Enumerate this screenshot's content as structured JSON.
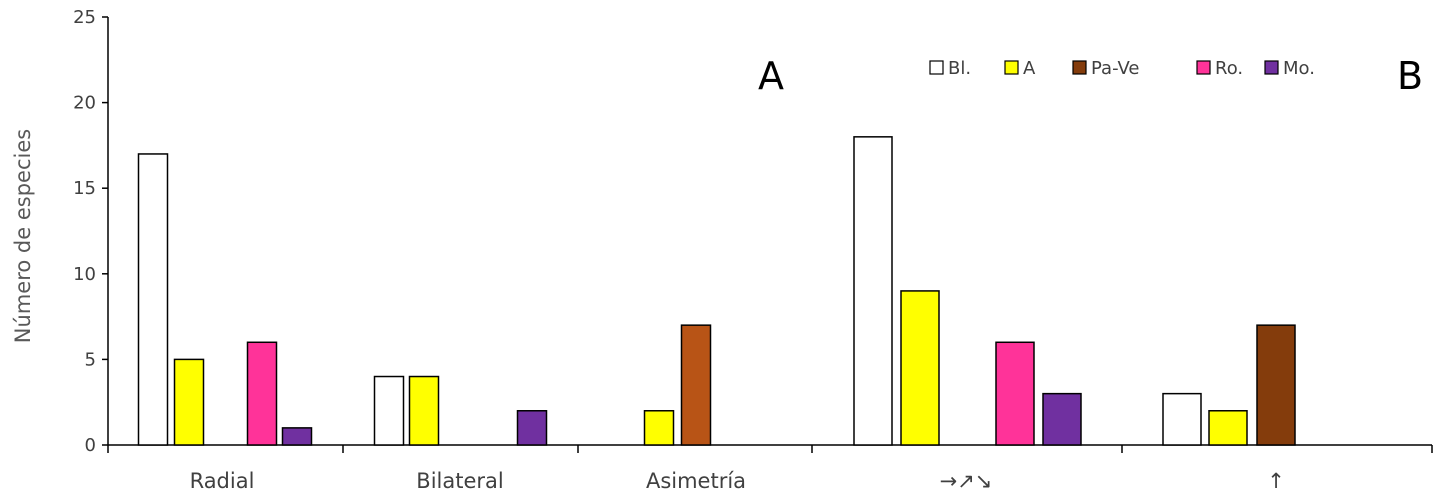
{
  "chart_data": {
    "type": "bar",
    "ylabel": "Número de especies",
    "ylim": [
      0,
      25
    ],
    "yticks": [
      0,
      5,
      10,
      15,
      20,
      25
    ],
    "grid": false,
    "legend_position": "top-right",
    "panels": [
      {
        "label": "A",
        "categories": [
          "Radial",
          "Bilateral",
          "Asimetría"
        ],
        "series": [
          {
            "name": "Bl.",
            "color": "#ffffff",
            "values": [
              17,
              4,
              0
            ]
          },
          {
            "name": "A",
            "color": "#ffff00",
            "values": [
              5,
              4,
              2
            ]
          },
          {
            "name": "Pa-Ve",
            "color": "#b85416",
            "values": [
              0,
              0,
              7
            ]
          },
          {
            "name": "Ro.",
            "color": "#ff3399",
            "values": [
              6,
              0,
              0
            ]
          },
          {
            "name": "Mo.",
            "color": "#7030a0",
            "values": [
              1,
              2,
              0
            ]
          }
        ]
      },
      {
        "label": "B",
        "categories": [
          "→↗↘",
          "↑"
        ],
        "series": [
          {
            "name": "Bl.",
            "color": "#ffffff",
            "values": [
              18,
              3
            ]
          },
          {
            "name": "A",
            "color": "#ffff00",
            "values": [
              9,
              2
            ]
          },
          {
            "name": "Pa-Ve",
            "color": "#843c0c",
            "values": [
              0,
              7
            ]
          },
          {
            "name": "Ro.",
            "color": "#ff3399",
            "values": [
              6,
              0
            ]
          },
          {
            "name": "Mo.",
            "color": "#7030a0",
            "values": [
              3,
              0
            ]
          }
        ]
      }
    ],
    "legend": [
      {
        "name": "Bl.",
        "color": "#ffffff"
      },
      {
        "name": "A",
        "color": "#ffff00"
      },
      {
        "name": "Pa-Ve",
        "color": "#843c0c"
      },
      {
        "name": "Ro.",
        "color": "#ff3399"
      },
      {
        "name": "Mo.",
        "color": "#7030a0"
      }
    ]
  }
}
